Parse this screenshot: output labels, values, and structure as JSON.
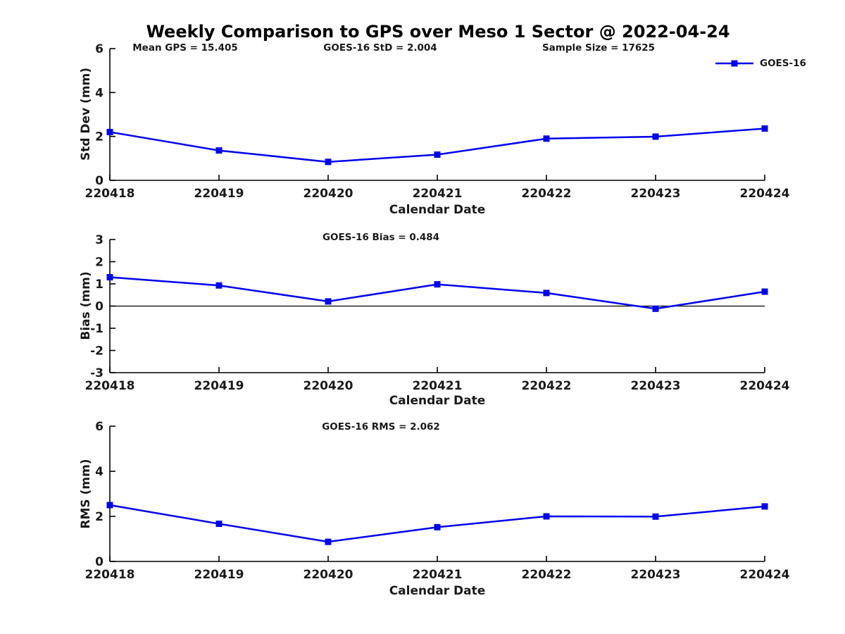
{
  "title": "Weekly Comparison to GPS over Meso 1 Sector @ 2022-04-24",
  "annotations": {
    "mean_gps": "Mean GPS = 15.405",
    "std": "GOES-16 StD = 2.004",
    "sample_size": "Sample Size = 17625"
  },
  "legend": {
    "label": "GOES-16",
    "color": "#0000ee",
    "position": "top-right"
  },
  "colors": {
    "line": "#0000ee",
    "marker": "#0000ee",
    "axis": "#000000",
    "text": "#1a1a1a"
  },
  "chart_data": [
    {
      "type": "line",
      "title": "",
      "xlabel": "Calendar Date",
      "ylabel": "Std Dev (mm)",
      "categories": [
        "220418",
        "220419",
        "220420",
        "220421",
        "220422",
        "220423",
        "220424"
      ],
      "series": [
        {
          "name": "GOES-16",
          "values": [
            2.2,
            1.36,
            0.84,
            1.17,
            1.9,
            1.99,
            2.36
          ]
        }
      ],
      "ylim": [
        0,
        6
      ],
      "yticks": [
        0,
        2,
        4,
        6
      ],
      "grid": false,
      "zero_line": false,
      "marker": "square",
      "legend_position": "top-right"
    },
    {
      "type": "line",
      "title": "GOES-16 Bias  = 0.484",
      "xlabel": "Calendar Date",
      "ylabel": "Bias (mm)",
      "categories": [
        "220418",
        "220419",
        "220420",
        "220421",
        "220422",
        "220423",
        "220424"
      ],
      "series": [
        {
          "name": "GOES-16",
          "values": [
            1.3,
            0.93,
            0.21,
            0.98,
            0.59,
            -0.12,
            0.65
          ]
        }
      ],
      "ylim": [
        -3,
        3
      ],
      "yticks": [
        -3,
        -2,
        -1,
        0,
        1,
        2,
        3
      ],
      "grid": false,
      "zero_line": true,
      "marker": "square",
      "legend_position": "none"
    },
    {
      "type": "line",
      "title": "GOES-16 RMS = 2.062",
      "xlabel": "Calendar Date",
      "ylabel": "RMS (mm)",
      "categories": [
        "220418",
        "220419",
        "220420",
        "220421",
        "220422",
        "220423",
        "220424"
      ],
      "series": [
        {
          "name": "GOES-16",
          "values": [
            2.5,
            1.67,
            0.87,
            1.52,
            2.0,
            1.99,
            2.44
          ]
        }
      ],
      "ylim": [
        0,
        6
      ],
      "yticks": [
        0,
        2,
        4,
        6
      ],
      "grid": false,
      "zero_line": false,
      "marker": "square",
      "legend_position": "none"
    }
  ]
}
